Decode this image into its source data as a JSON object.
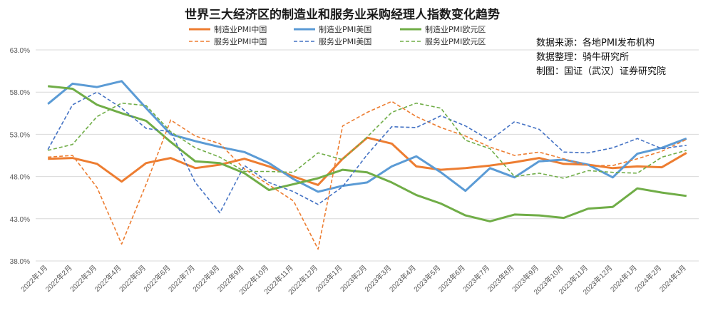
{
  "chart_data": {
    "type": "line",
    "title": "世界三大经济区的制造业和服务业采购经理人指数变化趋势",
    "ylim": [
      38.0,
      63.0
    ],
    "yticks": [
      "38.0%",
      "43.0%",
      "48.0%",
      "53.0%",
      "58.0%",
      "63.0%"
    ],
    "ytick_values": [
      38,
      43,
      48,
      53,
      58,
      63
    ],
    "grid": true,
    "legend_position": "top",
    "categories": [
      "2022年1月",
      "2022年2月",
      "2022年3月",
      "2022年4月",
      "2022年5月",
      "2022年6月",
      "2022年7月",
      "2022年8月",
      "2022年9月",
      "2022年10月",
      "2022年11月",
      "2022年12月",
      "2023年1月",
      "2023年2月",
      "2023年3月",
      "2023年4月",
      "2023年5月",
      "2023年6月",
      "2023年7月",
      "2023年8月",
      "2023年9月",
      "2023年10月",
      "2023年11月",
      "2023年12月",
      "2024年1月",
      "2024年2月",
      "2024年3月"
    ],
    "series": [
      {
        "name": "制造业PMI中国",
        "color": "#ED7D31",
        "dash": false,
        "values": [
          50.1,
          50.2,
          49.5,
          47.4,
          49.6,
          50.2,
          49.0,
          49.4,
          50.1,
          49.2,
          48.0,
          47.0,
          50.1,
          52.6,
          51.9,
          49.2,
          48.8,
          49.0,
          49.3,
          49.7,
          50.2,
          49.5,
          49.4,
          49.0,
          49.2,
          49.1,
          50.8
        ]
      },
      {
        "name": "制造业PMI美国",
        "color": "#5B9BD5",
        "dash": false,
        "values": [
          56.6,
          59.0,
          58.6,
          59.3,
          56.1,
          53.0,
          52.2,
          51.5,
          50.9,
          49.6,
          47.7,
          46.2,
          46.9,
          47.3,
          49.2,
          50.4,
          48.5,
          46.3,
          49.0,
          47.9,
          49.8,
          50.0,
          49.4,
          47.9,
          50.7,
          51.4,
          52.5
        ]
      },
      {
        "name": "制造业PMI欧元区",
        "color": "#70AD47",
        "dash": false,
        "values": [
          58.7,
          58.4,
          56.5,
          55.5,
          54.6,
          52.1,
          49.8,
          49.6,
          48.4,
          46.4,
          47.1,
          47.8,
          48.8,
          48.5,
          47.3,
          45.8,
          44.8,
          43.4,
          42.7,
          43.5,
          43.4,
          43.1,
          44.2,
          44.4,
          46.6,
          46.1,
          45.7
        ]
      },
      {
        "name": "服务业PMI中国",
        "color": "#ED7D31",
        "dash": true,
        "values": [
          50.3,
          50.5,
          46.7,
          40.0,
          47.1,
          54.7,
          52.8,
          51.9,
          48.9,
          47.0,
          45.1,
          39.4,
          54.0,
          55.6,
          56.9,
          55.1,
          53.8,
          52.8,
          51.5,
          50.5,
          50.9,
          50.1,
          49.3,
          49.3,
          50.1,
          51.0,
          52.4
        ]
      },
      {
        "name": "服务业PMI美国",
        "color": "#4472C4",
        "dash": true,
        "values": [
          51.2,
          56.5,
          58.0,
          56.1,
          53.7,
          53.3,
          47.3,
          43.7,
          49.3,
          47.3,
          46.2,
          44.7,
          46.8,
          50.6,
          53.9,
          53.8,
          55.2,
          54.0,
          52.3,
          54.5,
          53.6,
          50.9,
          50.8,
          51.4,
          52.5,
          51.3,
          51.7
        ]
      },
      {
        "name": "服务业PMI欧元区",
        "color": "#70AD47",
        "dash": true,
        "values": [
          51.1,
          51.8,
          55.1,
          56.7,
          56.4,
          53.3,
          51.4,
          50.3,
          48.6,
          48.6,
          48.5,
          50.8,
          50.0,
          52.7,
          55.6,
          56.7,
          56.1,
          52.3,
          51.3,
          48.0,
          48.4,
          47.8,
          48.7,
          48.5,
          48.4,
          50.3,
          51.1
        ]
      }
    ]
  },
  "source_notes": [
    "数据来源：各地PMI发布机构",
    "数据整理：骑牛研究所",
    "制图：国证（武汉）证券研究院"
  ]
}
